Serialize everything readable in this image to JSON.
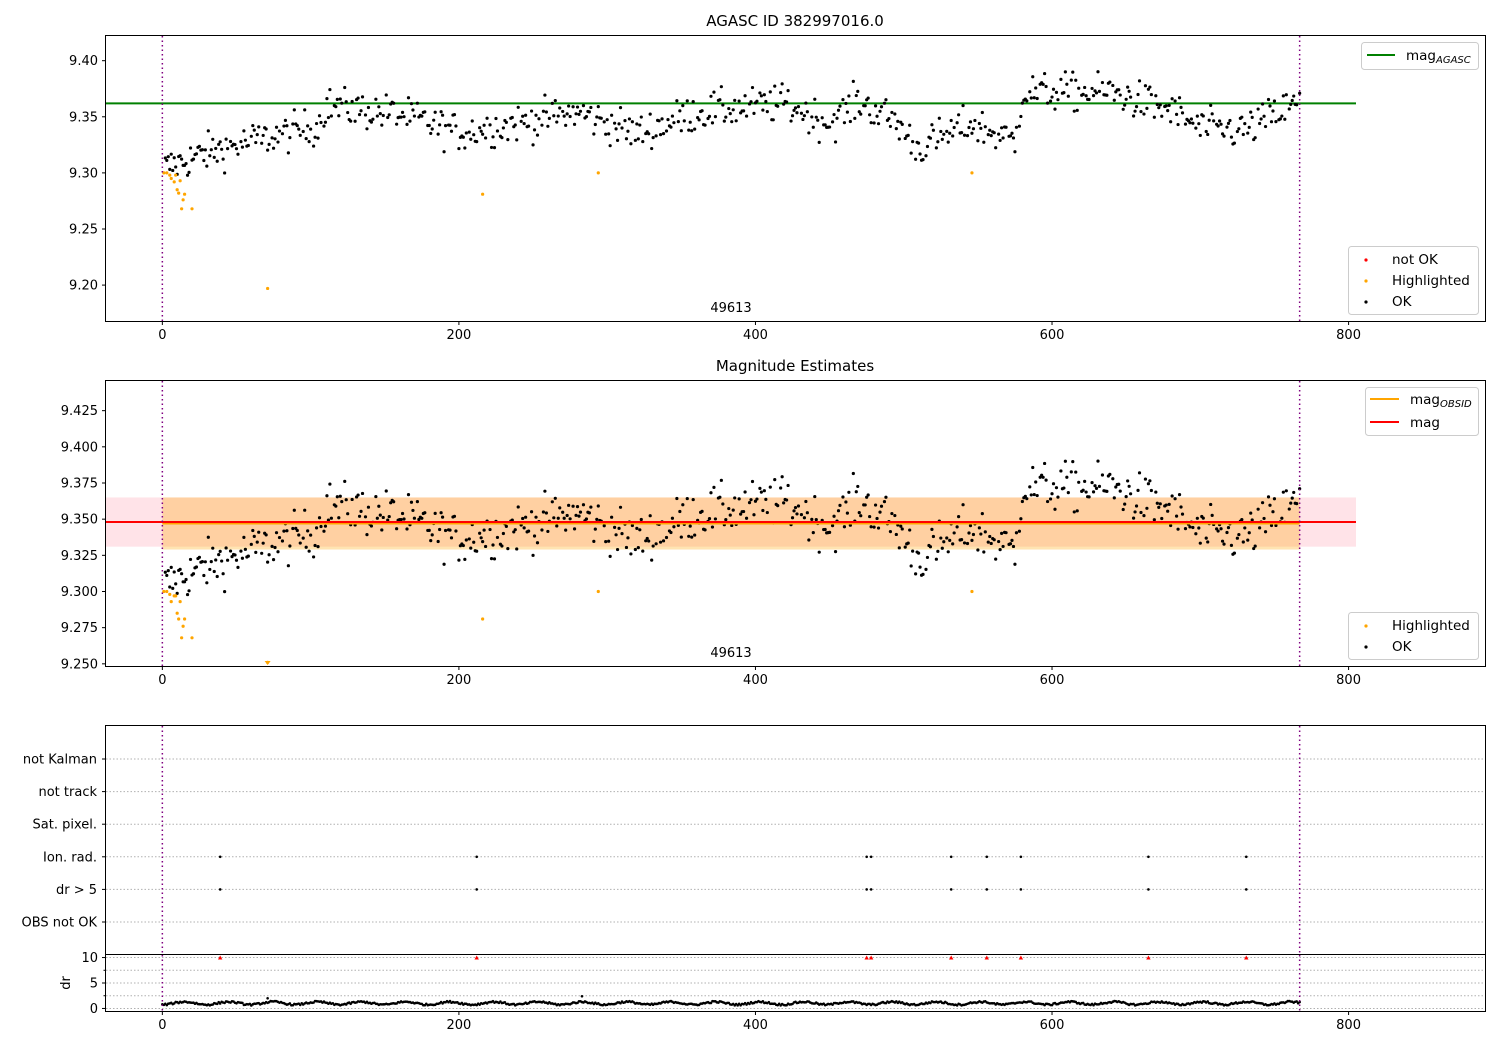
{
  "chart_data": [
    {
      "type": "scatter",
      "title": "AGASC ID 382997016.0",
      "xlim": [
        -38,
        892
      ],
      "ylim": [
        9.168,
        9.422
      ],
      "xticks": [
        0,
        200,
        400,
        600,
        800
      ],
      "yticks": [
        9.2,
        9.25,
        9.3,
        9.35,
        9.4
      ],
      "ytick_labels": [
        "9.20",
        "9.25",
        "9.30",
        "9.35",
        "9.40"
      ],
      "obs_boundaries": [
        0,
        767
      ],
      "obsid": "49613",
      "reference_lines": [
        {
          "name": "mag_AGASC",
          "value": 9.362,
          "x_range": [
            -38,
            805
          ],
          "color": "#008000"
        }
      ],
      "series": [
        {
          "name": "not OK",
          "color": "#ff0000",
          "points": []
        },
        {
          "name": "Highlighted",
          "color": "#ffa500",
          "points": [
            [
              1,
              9.3
            ],
            [
              3,
              9.3
            ],
            [
              5,
              9.298
            ],
            [
              6,
              9.295
            ],
            [
              8,
              9.292
            ],
            [
              9,
              9.298
            ],
            [
              10,
              9.285
            ],
            [
              11,
              9.282
            ],
            [
              12,
              9.293
            ],
            [
              13,
              9.268
            ],
            [
              14,
              9.276
            ],
            [
              15,
              9.281
            ],
            [
              20,
              9.268
            ],
            [
              71,
              9.197
            ],
            [
              216,
              9.281
            ],
            [
              294,
              9.3
            ],
            [
              546,
              9.3
            ]
          ]
        },
        {
          "name": "OK",
          "color": "#000000",
          "trend": "mag",
          "points": []
        }
      ],
      "legend": [
        {
          "label": "mag",
          "sub": "AGASC",
          "kind": "line",
          "color": "#008000",
          "position": "top-right"
        },
        {
          "label": "not OK",
          "kind": "marker",
          "color": "#ff0000",
          "position": "bottom-right"
        },
        {
          "label": "Highlighted",
          "kind": "marker",
          "color": "#ffa500",
          "position": "bottom-right"
        },
        {
          "label": "OK",
          "kind": "marker",
          "color": "#000000",
          "position": "bottom-right"
        }
      ]
    },
    {
      "type": "scatter",
      "title": "Magnitude Estimates",
      "xlim": [
        -38,
        892
      ],
      "ylim": [
        9.2485,
        9.4455
      ],
      "xticks": [
        0,
        200,
        400,
        600,
        800
      ],
      "yticks": [
        9.25,
        9.275,
        9.3,
        9.325,
        9.35,
        9.375,
        9.4,
        9.425
      ],
      "ytick_labels": [
        "9.250",
        "9.275",
        "9.300",
        "9.325",
        "9.350",
        "9.375",
        "9.400",
        "9.425"
      ],
      "obs_boundaries": [
        0,
        767
      ],
      "obsid": "49613",
      "bands": [
        {
          "name": "mag_band",
          "range": [
            9.331,
            9.365
          ],
          "x_range": [
            -38,
            805
          ],
          "color": "#ffc0cb",
          "opacity": 0.45
        },
        {
          "name": "mag_OBSID_band",
          "range": [
            9.329,
            9.365
          ],
          "x_range": [
            0,
            767
          ],
          "color": "#ffa500",
          "opacity": 0.3
        }
      ],
      "reference_lines": [
        {
          "name": "mag_OBSID",
          "value": 9.347,
          "x_range": [
            0,
            767
          ],
          "color": "#ffa500"
        },
        {
          "name": "mag",
          "value": 9.348,
          "x_range": [
            -38,
            805
          ],
          "color": "#ff0000"
        }
      ],
      "series": [
        {
          "name": "Highlighted",
          "color": "#ffa500",
          "points": [
            [
              1,
              9.3
            ],
            [
              3,
              9.3
            ],
            [
              5,
              9.298
            ],
            [
              6,
              9.293
            ],
            [
              8,
              9.297
            ],
            [
              9,
              9.297
            ],
            [
              10,
              9.285
            ],
            [
              11,
              9.281
            ],
            [
              12,
              9.293
            ],
            [
              13,
              9.268
            ],
            [
              14,
              9.276
            ],
            [
              15,
              9.281
            ],
            [
              20,
              9.268
            ],
            [
              71,
              9.251
            ],
            [
              216,
              9.281
            ],
            [
              294,
              9.3
            ],
            [
              546,
              9.3
            ]
          ]
        },
        {
          "name": "OK",
          "color": "#000000",
          "trend": "mag",
          "points": []
        }
      ],
      "legend": [
        {
          "label": "mag",
          "sub": "OBSID",
          "kind": "line",
          "color": "#ffa500",
          "position": "top-right"
        },
        {
          "label": "mag",
          "kind": "line",
          "color": "#ff0000",
          "position": "top-right"
        },
        {
          "label": "Highlighted",
          "kind": "marker",
          "color": "#ffa500",
          "position": "bottom-right"
        },
        {
          "label": "OK",
          "kind": "marker",
          "color": "#000000",
          "position": "bottom-right"
        }
      ]
    },
    {
      "type": "scatter",
      "title": "",
      "xlim": [
        -38,
        892
      ],
      "xticks": [
        0,
        200,
        400,
        600,
        800
      ],
      "obs_boundaries": [
        0,
        767
      ],
      "flag_rows": [
        "not Kalman",
        "not track",
        "Sat. pixel.",
        "Ion. rad.",
        "dr > 5",
        "OBS not OK"
      ],
      "flag_events": [
        {
          "flag": "Ion. rad.",
          "x": [
            39,
            212,
            475,
            478,
            532,
            556,
            579,
            665,
            731
          ]
        },
        {
          "flag": "dr > 5",
          "x": [
            39,
            212,
            475,
            478,
            532,
            556,
            579,
            665,
            731
          ]
        }
      ],
      "flag_event_color": "#000000"
    },
    {
      "type": "scatter",
      "title": "",
      "xlim": [
        -38,
        892
      ],
      "ylim": [
        -0.5,
        10.5
      ],
      "ylabel": "dr",
      "xticks": [
        0,
        200,
        400,
        600,
        800
      ],
      "yticks": [
        0,
        5,
        10
      ],
      "minor_yticks": [
        2.5,
        7.5
      ],
      "obs_boundaries": [
        0,
        767
      ],
      "clipped_markers": {
        "value": 10,
        "x": [
          39,
          212,
          475,
          478,
          532,
          556,
          579,
          665,
          731
        ],
        "color": "#ff0000"
      },
      "outliers": [
        [
          71,
          2.0
        ],
        [
          283,
          2.4
        ]
      ],
      "series": [
        {
          "name": "dr",
          "color": "#000000",
          "trend": "dr",
          "points": []
        }
      ]
    }
  ]
}
